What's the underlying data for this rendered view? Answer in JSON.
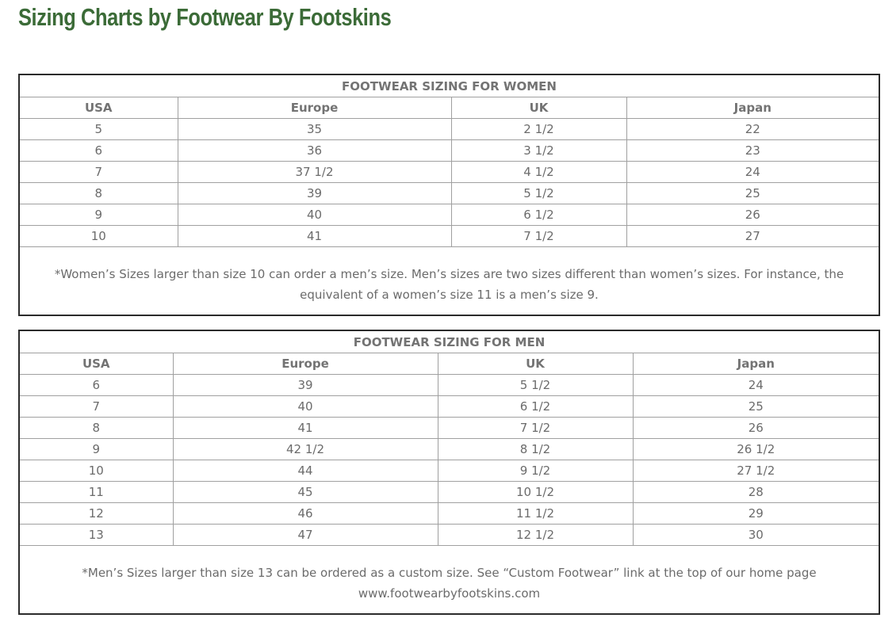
{
  "page_title": "Sizing Charts by Footwear By Footskins",
  "colors": {
    "title": "#3b6b37",
    "text": "#6b6b6b",
    "border": "#2b2b2b"
  },
  "women": {
    "title": "FOOTWEAR SIZING FOR WOMEN",
    "headers": [
      "USA",
      "Europe",
      "UK",
      "Japan"
    ],
    "rows": [
      [
        "5",
        "35",
        "2 1/2",
        "22"
      ],
      [
        "6",
        "36",
        "3 1/2",
        "23"
      ],
      [
        "7",
        "37 1/2",
        "4 1/2",
        "24"
      ],
      [
        "8",
        "39",
        "5 1/2",
        "25"
      ],
      [
        "9",
        "40",
        "6 1/2",
        "26"
      ],
      [
        "10",
        "41",
        "7 1/2",
        "27"
      ]
    ],
    "note": "*Women’s Sizes larger than size 10 can order a men’s size. Men’s sizes are two sizes different than women’s sizes. For instance, the equivalent of a women’s size 11 is a men’s size 9."
  },
  "men": {
    "title": "FOOTWEAR SIZING FOR MEN",
    "headers": [
      "USA",
      "Europe",
      "UK",
      "Japan"
    ],
    "rows": [
      [
        "6",
        "39",
        "5 1/2",
        "24"
      ],
      [
        "7",
        "40",
        "6 1/2",
        "25"
      ],
      [
        "8",
        "41",
        "7 1/2",
        "26"
      ],
      [
        "9",
        "42 1/2",
        "8 1/2",
        "26 1/2"
      ],
      [
        "10",
        "44",
        "9 1/2",
        "27 1/2"
      ],
      [
        "11",
        "45",
        "10 1/2",
        "28"
      ],
      [
        "12",
        "46",
        "11 1/2",
        "29"
      ],
      [
        "13",
        "47",
        "12 1/2",
        "30"
      ]
    ],
    "note": "*Men’s Sizes larger than size 13 can be ordered as a custom size. See “Custom Footwear” link at the top of our home page",
    "website": "www.footwearbyfootskins.com"
  }
}
